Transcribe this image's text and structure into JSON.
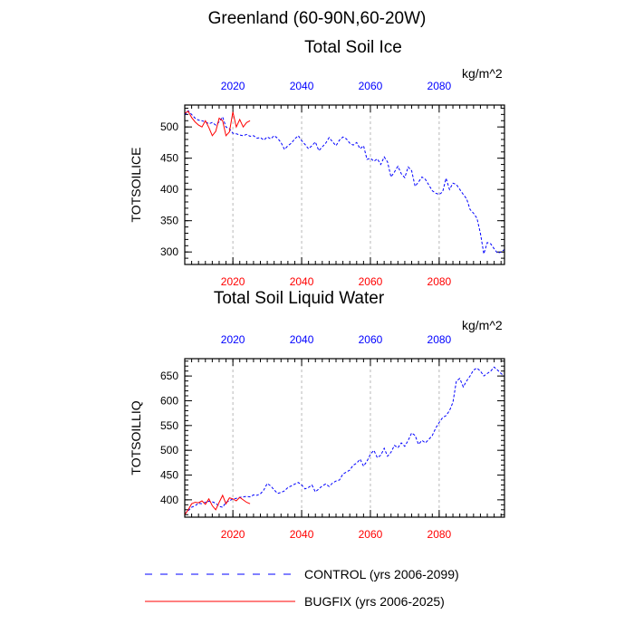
{
  "header": {
    "title": "Greenland (60-90N,60-20W)"
  },
  "legend": {
    "control_label": "CONTROL (yrs 2006-2099)",
    "bugfix_label": "BUGFIX (yrs 2006-2025)",
    "control_color": "#0000ff",
    "bugfix_color": "#ff0000"
  },
  "chart_data": [
    {
      "type": "line",
      "title": "Total Soil Ice",
      "units": "kg/m^2",
      "ylabel": "TOTSOILICE",
      "xlabel": "",
      "xlim": [
        2006,
        2099
      ],
      "ylim": [
        280,
        535
      ],
      "yticks": [
        300,
        350,
        400,
        450,
        500
      ],
      "xticks": [
        2020,
        2040,
        2060,
        2080
      ],
      "top_tick_color": "#0000ff",
      "bottom_tick_color": "#ff0000",
      "series": [
        {
          "name": "CONTROL (yrs 2006-2099)",
          "color": "#0000ff",
          "style": "dashed",
          "x": [
            2006,
            2007,
            2008,
            2009,
            2010,
            2011,
            2012,
            2013,
            2014,
            2015,
            2016,
            2017,
            2018,
            2019,
            2020,
            2021,
            2022,
            2023,
            2024,
            2025,
            2026,
            2027,
            2028,
            2029,
            2030,
            2031,
            2032,
            2033,
            2034,
            2035,
            2036,
            2037,
            2038,
            2039,
            2040,
            2041,
            2042,
            2043,
            2044,
            2045,
            2046,
            2047,
            2048,
            2049,
            2050,
            2051,
            2052,
            2053,
            2054,
            2055,
            2056,
            2057,
            2058,
            2059,
            2060,
            2061,
            2062,
            2063,
            2064,
            2065,
            2066,
            2067,
            2068,
            2069,
            2070,
            2071,
            2072,
            2073,
            2074,
            2075,
            2076,
            2077,
            2078,
            2079,
            2080,
            2081,
            2082,
            2083,
            2084,
            2085,
            2086,
            2087,
            2088,
            2089,
            2090,
            2091,
            2092,
            2093,
            2094,
            2095,
            2096,
            2097,
            2098,
            2099
          ],
          "values": [
            519,
            526,
            520,
            514,
            511,
            510,
            508,
            505,
            507,
            503,
            508,
            516,
            500,
            497,
            490,
            489,
            487,
            486,
            488,
            485,
            486,
            482,
            483,
            479,
            484,
            481,
            486,
            482,
            475,
            464,
            470,
            474,
            481,
            486,
            478,
            472,
            465,
            470,
            476,
            462,
            468,
            474,
            483,
            476,
            470,
            479,
            484,
            481,
            474,
            471,
            475,
            465,
            470,
            448,
            450,
            445,
            449,
            440,
            452,
            444,
            420,
            428,
            437,
            425,
            419,
            436,
            430,
            405,
            412,
            420,
            416,
            407,
            398,
            394,
            392,
            396,
            418,
            400,
            410,
            408,
            400,
            392,
            385,
            368,
            362,
            354,
            330,
            297,
            315,
            313,
            305,
            298,
            300,
            304
          ]
        },
        {
          "name": "BUGFIX (yrs 2006-2025)",
          "color": "#ff0000",
          "style": "solid",
          "x": [
            2006,
            2007,
            2008,
            2009,
            2010,
            2011,
            2012,
            2013,
            2014,
            2015,
            2016,
            2017,
            2018,
            2019,
            2020,
            2021,
            2022,
            2023,
            2024,
            2025
          ],
          "values": [
            522,
            525,
            515,
            508,
            503,
            500,
            510,
            499,
            486,
            493,
            514,
            510,
            486,
            492,
            524,
            500,
            512,
            500,
            507,
            510
          ]
        }
      ]
    },
    {
      "type": "line",
      "title": "Total Soil Liquid Water",
      "units": "kg/m^2",
      "ylabel": "TOTSOILLIQ",
      "xlabel": "",
      "xlim": [
        2006,
        2099
      ],
      "ylim": [
        365,
        685
      ],
      "yticks": [
        400,
        450,
        500,
        550,
        600,
        650
      ],
      "xticks": [
        2020,
        2040,
        2060,
        2080
      ],
      "top_tick_color": "#0000ff",
      "bottom_tick_color": "#ff0000",
      "series": [
        {
          "name": "CONTROL (yrs 2006-2099)",
          "color": "#0000ff",
          "style": "dashed",
          "x": [
            2006,
            2007,
            2008,
            2009,
            2010,
            2011,
            2012,
            2013,
            2014,
            2015,
            2016,
            2017,
            2018,
            2019,
            2020,
            2021,
            2022,
            2023,
            2024,
            2025,
            2026,
            2027,
            2028,
            2029,
            2030,
            2031,
            2032,
            2033,
            2034,
            2035,
            2036,
            2037,
            2038,
            2039,
            2040,
            2041,
            2042,
            2043,
            2044,
            2045,
            2046,
            2047,
            2048,
            2049,
            2050,
            2051,
            2052,
            2053,
            2054,
            2055,
            2056,
            2057,
            2058,
            2059,
            2060,
            2061,
            2062,
            2063,
            2064,
            2065,
            2066,
            2067,
            2068,
            2069,
            2070,
            2071,
            2072,
            2073,
            2074,
            2075,
            2076,
            2077,
            2078,
            2079,
            2080,
            2081,
            2082,
            2083,
            2084,
            2085,
            2086,
            2087,
            2088,
            2089,
            2090,
            2091,
            2092,
            2093,
            2094,
            2095,
            2096,
            2097,
            2098,
            2099
          ],
          "values": [
            372,
            378,
            385,
            388,
            393,
            392,
            395,
            397,
            396,
            393,
            387,
            385,
            395,
            398,
            402,
            403,
            405,
            406,
            407,
            406,
            410,
            409,
            412,
            420,
            433,
            428,
            420,
            413,
            415,
            418,
            425,
            428,
            432,
            435,
            430,
            422,
            425,
            430,
            416,
            422,
            428,
            432,
            427,
            434,
            438,
            440,
            452,
            456,
            460,
            470,
            474,
            482,
            468,
            478,
            492,
            500,
            485,
            490,
            504,
            488,
            496,
            510,
            505,
            515,
            508,
            520,
            535,
            530,
            512,
            520,
            515,
            522,
            530,
            545,
            556,
            566,
            570,
            580,
            597,
            640,
            645,
            628,
            640,
            650,
            662,
            666,
            660,
            650,
            655,
            660,
            668,
            662,
            655,
            650
          ]
        },
        {
          "name": "BUGFIX (yrs 2006-2025)",
          "color": "#ff0000",
          "style": "solid",
          "x": [
            2006,
            2007,
            2008,
            2009,
            2010,
            2011,
            2012,
            2013,
            2014,
            2015,
            2016,
            2017,
            2018,
            2019,
            2020,
            2021,
            2022,
            2023,
            2024,
            2025
          ],
          "values": [
            370,
            380,
            392,
            395,
            394,
            398,
            391,
            402,
            388,
            380,
            395,
            409,
            392,
            404,
            402,
            398,
            405,
            400,
            395,
            392
          ]
        }
      ]
    }
  ]
}
